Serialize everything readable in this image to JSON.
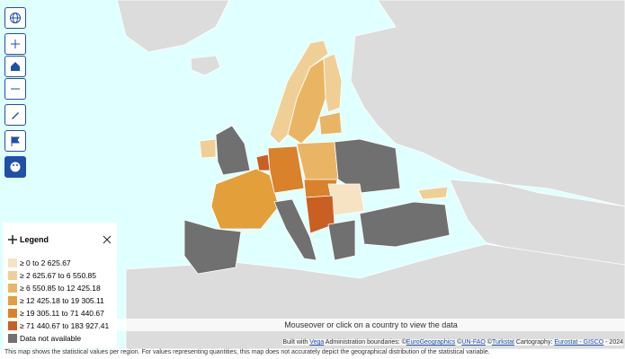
{
  "legend": {
    "title": "Legend",
    "items": [
      {
        "label": "≥ 0 to 2 625.67",
        "color": "#f6e3c4"
      },
      {
        "label": "≥ 2 625.67 to 6 550.85",
        "color": "#f0cf96"
      },
      {
        "label": "≥ 6 550.85 to 12 425.18",
        "color": "#e9b564"
      },
      {
        "label": "≥ 12 425.18 to 19 305.11",
        "color": "#e29f3a"
      },
      {
        "label": "≥ 19 305.11 to 71 440.67",
        "color": "#d9822b"
      },
      {
        "label": "≥ 71 440.67 to 183 927.41",
        "color": "#c95f23"
      },
      {
        "label": "Data not available",
        "color": "#707070"
      }
    ]
  },
  "hint": "Mouseover or click on a country to view the data",
  "attribution": [
    {
      "text": "Built with ",
      "link": false
    },
    {
      "text": "Vega",
      "link": true
    },
    {
      "text": " Administration boundaries: ©",
      "link": false
    },
    {
      "text": "EuroGeographics",
      "link": true
    },
    {
      "text": " ©",
      "link": false
    },
    {
      "text": "UN-FAO",
      "link": true
    },
    {
      "text": " ©",
      "link": false
    },
    {
      "text": "Turkstat",
      "link": true
    },
    {
      "text": " Cartography: ",
      "link": false
    },
    {
      "text": "Eurostat - GISCO",
      "link": true
    },
    {
      "text": " - 2024",
      "link": false
    }
  ],
  "footer": "This map shows the statistical values per region. For values representing quantities, this map does not accurately depict the geographical distribution of the statistical variable."
}
